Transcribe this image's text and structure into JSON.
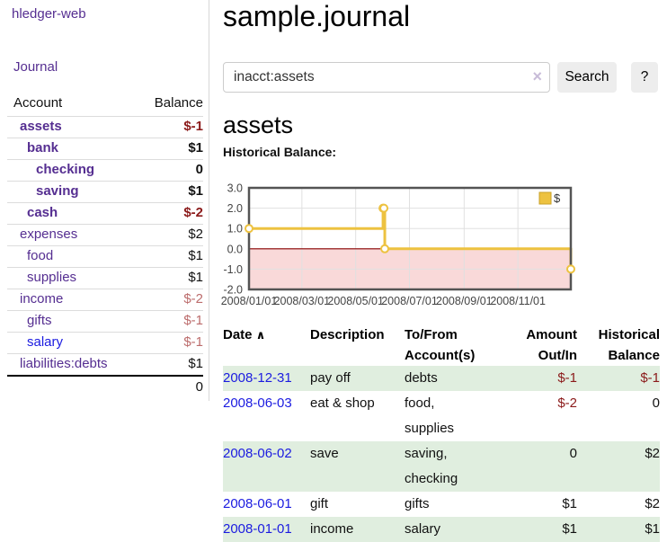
{
  "app_title": "hledger-web",
  "sidebar": {
    "nav_journal": "Journal",
    "accounts": {
      "headers": {
        "account": "Account",
        "balance": "Balance"
      },
      "rows": [
        {
          "account": "assets",
          "balance": "$-1",
          "depth": 1,
          "bold": true,
          "tone": "neg"
        },
        {
          "account": "bank",
          "balance": "$1",
          "depth": 2,
          "bold": true,
          "tone": ""
        },
        {
          "account": "checking",
          "balance": "0",
          "depth": 3,
          "bold": true,
          "tone": ""
        },
        {
          "account": "saving",
          "balance": "$1",
          "depth": 3,
          "bold": true,
          "tone": ""
        },
        {
          "account": "cash",
          "balance": "$-2",
          "depth": 2,
          "bold": true,
          "tone": "neg"
        },
        {
          "account": "expenses",
          "balance": "$2",
          "depth": 1,
          "bold": false,
          "tone": ""
        },
        {
          "account": "food",
          "balance": "$1",
          "depth": 2,
          "bold": false,
          "tone": ""
        },
        {
          "account": "supplies",
          "balance": "$1",
          "depth": 2,
          "bold": false,
          "tone": ""
        },
        {
          "account": "income",
          "balance": "$-2",
          "depth": 1,
          "bold": false,
          "tone": "dim"
        },
        {
          "account": "gifts",
          "balance": "$-1",
          "depth": 2,
          "bold": false,
          "tone": "dim"
        },
        {
          "account": "salary",
          "balance": "$-1",
          "depth": 2,
          "bold": false,
          "tone": "dim",
          "blue": true
        },
        {
          "account": "liabilities:debts",
          "balance": "$1",
          "depth": 1,
          "bold": false,
          "tone": ""
        }
      ],
      "total": "0"
    }
  },
  "main": {
    "title": "sample.journal",
    "search": {
      "value": "inacct:assets",
      "clear_icon": "×",
      "search_button": "Search",
      "help_button": "?"
    },
    "account_heading": "assets",
    "chart_title": "Historical Balance:"
  },
  "chart_data": {
    "type": "line",
    "title": "Historical Balance",
    "series": [
      {
        "name": "$",
        "color": "#edc240",
        "marker_fill": "#ffffff",
        "step": true,
        "points": [
          [
            "2008-01-01",
            1
          ],
          [
            "2008-06-01",
            2
          ],
          [
            "2008-06-02",
            2
          ],
          [
            "2008-06-03",
            0
          ],
          [
            "2008-12-31",
            -1
          ]
        ]
      }
    ],
    "x_range": [
      "2008-01-01",
      "2008-12-31"
    ],
    "y_range": [
      -2,
      3
    ],
    "y_ticks": [
      "3.0",
      "2.0",
      "1.0",
      "0.0",
      "-1.0",
      "-2.0"
    ],
    "x_ticks": [
      "2008/01/01",
      "2008/03/01",
      "2008/05/01",
      "2008/07/01",
      "2008/09/01",
      "2008/11/01"
    ],
    "legend_label": "$",
    "legend_position": "top-right",
    "grid_color": "#e0e0e0",
    "border_color": "#545454",
    "zero_line_color": "#8b0000",
    "negative_fill": "#f9d9d9"
  },
  "register": {
    "headers": {
      "date": "Date",
      "sort_icon": "∧",
      "description": "Description",
      "accounts": "To/From Account(s)",
      "amount": "Amount Out/In",
      "balance": "Historical Balance"
    },
    "rows": [
      {
        "date": "2008-12-31",
        "description": "pay off",
        "accounts": "debts",
        "amount": "$-1",
        "amount_negative": true,
        "balance": "$-1",
        "balance_negative": true
      },
      {
        "date": "2008-06-03",
        "description": "eat & shop",
        "accounts": "food, supplies",
        "amount": "$-2",
        "amount_negative": true,
        "balance": "0",
        "balance_negative": false
      },
      {
        "date": "2008-06-02",
        "description": "save",
        "accounts": "saving, checking",
        "amount": "0",
        "amount_negative": false,
        "balance": "$2",
        "balance_negative": false
      },
      {
        "date": "2008-06-01",
        "description": "gift",
        "accounts": "gifts",
        "amount": "$1",
        "amount_negative": false,
        "balance": "$2",
        "balance_negative": false
      },
      {
        "date": "2008-01-01",
        "description": "income",
        "accounts": "salary",
        "amount": "$1",
        "amount_negative": false,
        "balance": "$1",
        "balance_negative": false
      }
    ]
  }
}
